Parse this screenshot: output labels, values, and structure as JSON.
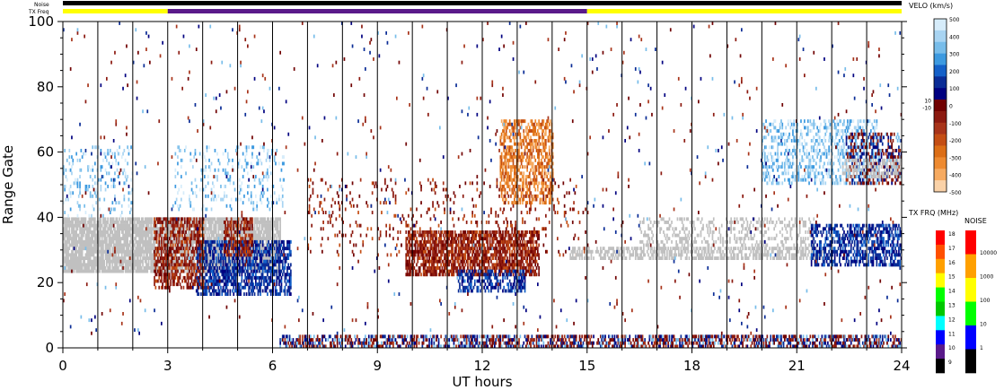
{
  "chart_data": {
    "type": "heatmap",
    "xlabel": "UT hours",
    "ylabel": "Range Gate",
    "xlim": [
      0,
      24
    ],
    "ylim": [
      0,
      100
    ],
    "x_ticks": [
      0,
      3,
      6,
      9,
      12,
      15,
      18,
      21,
      24
    ],
    "y_ticks": [
      0,
      20,
      40,
      60,
      80,
      100
    ],
    "vertical_lines_hours": [
      0,
      1,
      2,
      3,
      4,
      5,
      6,
      7,
      8,
      9,
      10,
      11,
      12,
      13,
      14,
      15,
      16,
      17,
      18,
      19,
      20,
      21,
      22,
      23,
      24
    ],
    "top_bars": {
      "noise_label": "Noise",
      "txfreq_label": "TX Freq",
      "noise_color": "#000000",
      "noise_segments": [
        [
          0,
          24
        ]
      ],
      "txfreq_segments": [
        {
          "start": 0,
          "end": 3,
          "color": "#ffff00"
        },
        {
          "start": 3,
          "end": 15,
          "color": "#5a1a8a"
        },
        {
          "start": 15,
          "end": 24,
          "color": "#ffff00"
        }
      ]
    },
    "velocity_scale": {
      "title": "VELO (km/s)",
      "ticks": [
        "500",
        "400",
        "300",
        "200",
        "100",
        "0",
        "-100",
        "-200",
        "-300",
        "-400",
        "-500"
      ],
      "side_labels": [
        "10",
        "-10"
      ],
      "colors": [
        "#d6ecfa",
        "#a8d4f2",
        "#78bdea",
        "#3d9ae0",
        "#1460c8",
        "#0a2c96",
        "#000080",
        "#700000",
        "#8c1a10",
        "#a8341a",
        "#c44e14",
        "#dc6e16",
        "#ee8a30",
        "#f6aa60",
        "#fad2a8"
      ],
      "ground_scatter_color": "#c0c0c0"
    },
    "txfreq_scale": {
      "title": "TX FRQ (MHz)",
      "ticks": [
        "18",
        "17",
        "16",
        "15",
        "14",
        "13",
        "12",
        "11",
        "10",
        "9"
      ],
      "colors": [
        "#ff0000",
        "#ff5000",
        "#ffa000",
        "#ffff00",
        "#00ff00",
        "#00c800",
        "#00ffff",
        "#0000ff",
        "#5a1a8a",
        "#000000"
      ]
    },
    "noise_scale": {
      "title": "NOISE",
      "ticks": [
        "10000",
        "1000",
        "100",
        "10",
        "1"
      ],
      "colors": [
        "#ff0000",
        "#ffa000",
        "#ffff00",
        "#00ff00",
        "#0000ff",
        "#000000"
      ]
    },
    "regions": [
      {
        "name": "ground scatter band",
        "kind": "ground",
        "t": [
          0,
          6.2
        ],
        "g": [
          23,
          40
        ],
        "density": 0.85
      },
      {
        "name": "blue band",
        "kind": "neg",
        "t": [
          3.8,
          6.5
        ],
        "g": [
          16,
          33
        ],
        "density": 0.6
      },
      {
        "name": "red patch",
        "kind": "pos",
        "t": [
          2.6,
          4.0
        ],
        "g": [
          18,
          40
        ],
        "density": 0.55
      },
      {
        "name": "red patch 2",
        "kind": "pos",
        "t": [
          4.6,
          5.4
        ],
        "g": [
          28,
          40
        ],
        "density": 0.5
      },
      {
        "name": "light blue upper",
        "kind": "lneg",
        "t": [
          0,
          2.0
        ],
        "g": [
          40,
          62
        ],
        "density": 0.15
      },
      {
        "name": "light blue upper 2",
        "kind": "lneg",
        "t": [
          3.2,
          6.3
        ],
        "g": [
          42,
          62
        ],
        "density": 0.14
      },
      {
        "name": "evening red",
        "kind": "pos",
        "t": [
          9.8,
          13.6
        ],
        "g": [
          22,
          36
        ],
        "density": 0.7
      },
      {
        "name": "evening blue",
        "kind": "neg",
        "t": [
          11.3,
          13.2
        ],
        "g": [
          17,
          24
        ],
        "density": 0.45
      },
      {
        "name": "orange plume",
        "kind": "orange",
        "t": [
          12.5,
          14.0
        ],
        "g": [
          44,
          70
        ],
        "density": 0.55
      },
      {
        "name": "scattered red",
        "kind": "pos",
        "t": [
          7.0,
          15.0
        ],
        "g": [
          28,
          52
        ],
        "density": 0.06
      },
      {
        "name": "ground tail",
        "kind": "ground",
        "t": [
          14.5,
          21.8
        ],
        "g": [
          27,
          31
        ],
        "density": 0.55
      },
      {
        "name": "ground diagonal",
        "kind": "ground",
        "t": [
          16.5,
          21.5
        ],
        "g": [
          31,
          40
        ],
        "density": 0.25
      },
      {
        "name": "late blue band",
        "kind": "neg",
        "t": [
          21.4,
          24
        ],
        "g": [
          25,
          38
        ],
        "density": 0.55
      },
      {
        "name": "late light blue",
        "kind": "lneg",
        "t": [
          20.0,
          23.3
        ],
        "g": [
          50,
          70
        ],
        "density": 0.35
      },
      {
        "name": "late mixed",
        "kind": "mix",
        "t": [
          22.4,
          24
        ],
        "g": [
          50,
          66
        ],
        "density": 0.45
      },
      {
        "name": "late ground",
        "kind": "ground",
        "t": [
          22.3,
          24
        ],
        "g": [
          52,
          58
        ],
        "density": 0.45
      },
      {
        "name": "near range",
        "kind": "mix",
        "t": [
          6.2,
          24
        ],
        "g": [
          0,
          4
        ],
        "density": 0.55
      },
      {
        "name": "sparse noise",
        "kind": "mix",
        "t": [
          0,
          24
        ],
        "g": [
          4,
          100
        ],
        "density": 0.012
      }
    ]
  }
}
